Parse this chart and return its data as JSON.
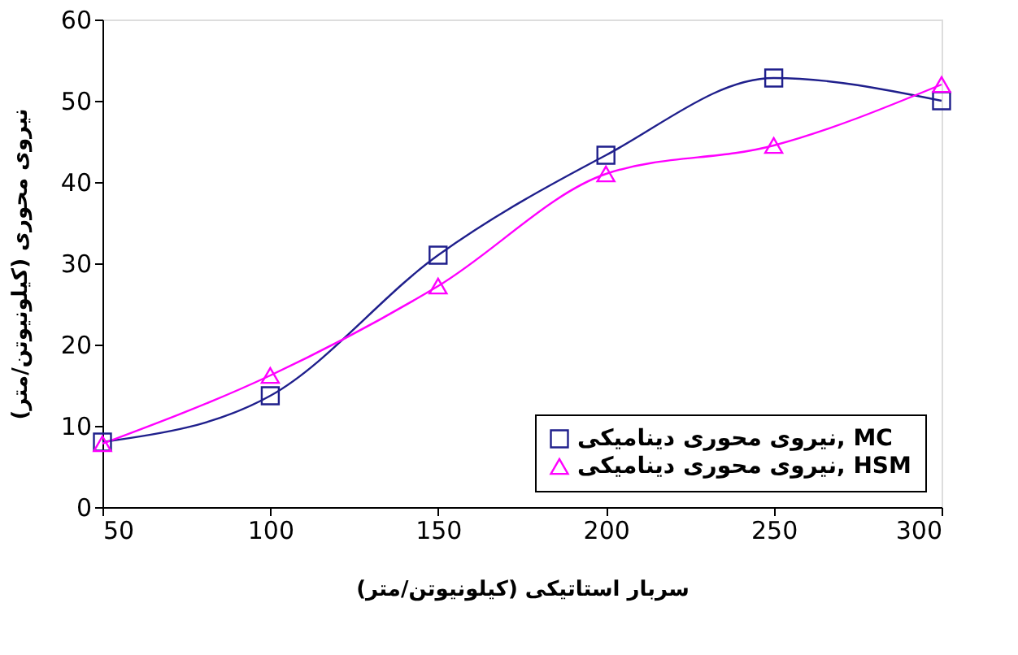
{
  "chart_data": {
    "type": "line",
    "xlabel": "سربار استاتیکی (کیلونیوتن/متر)",
    "ylabel": "نیروی محوری (کیلونیوتن/متر)",
    "x": [
      50,
      100,
      150,
      200,
      250,
      300
    ],
    "series": [
      {
        "name": "نیروی محوری دینامیکی, MC",
        "color": "#1f1f8c",
        "marker": "square",
        "values": [
          8,
          13.7,
          31,
          43.3,
          52.8,
          50
        ]
      },
      {
        "name": "نیروی محوری دینامیکی, HSM",
        "color": "#ff00ff",
        "marker": "triangle",
        "values": [
          7.8,
          16.2,
          27.2,
          41,
          44.5,
          52
        ]
      }
    ],
    "xlim": [
      50,
      300
    ],
    "xticks": [
      50,
      100,
      150,
      200,
      250,
      300
    ],
    "ylim": [
      0,
      60
    ],
    "yticks": [
      0,
      10,
      20,
      30,
      40,
      50,
      60
    ],
    "grid": false,
    "legend": "bottom right",
    "line_style": "solid"
  }
}
